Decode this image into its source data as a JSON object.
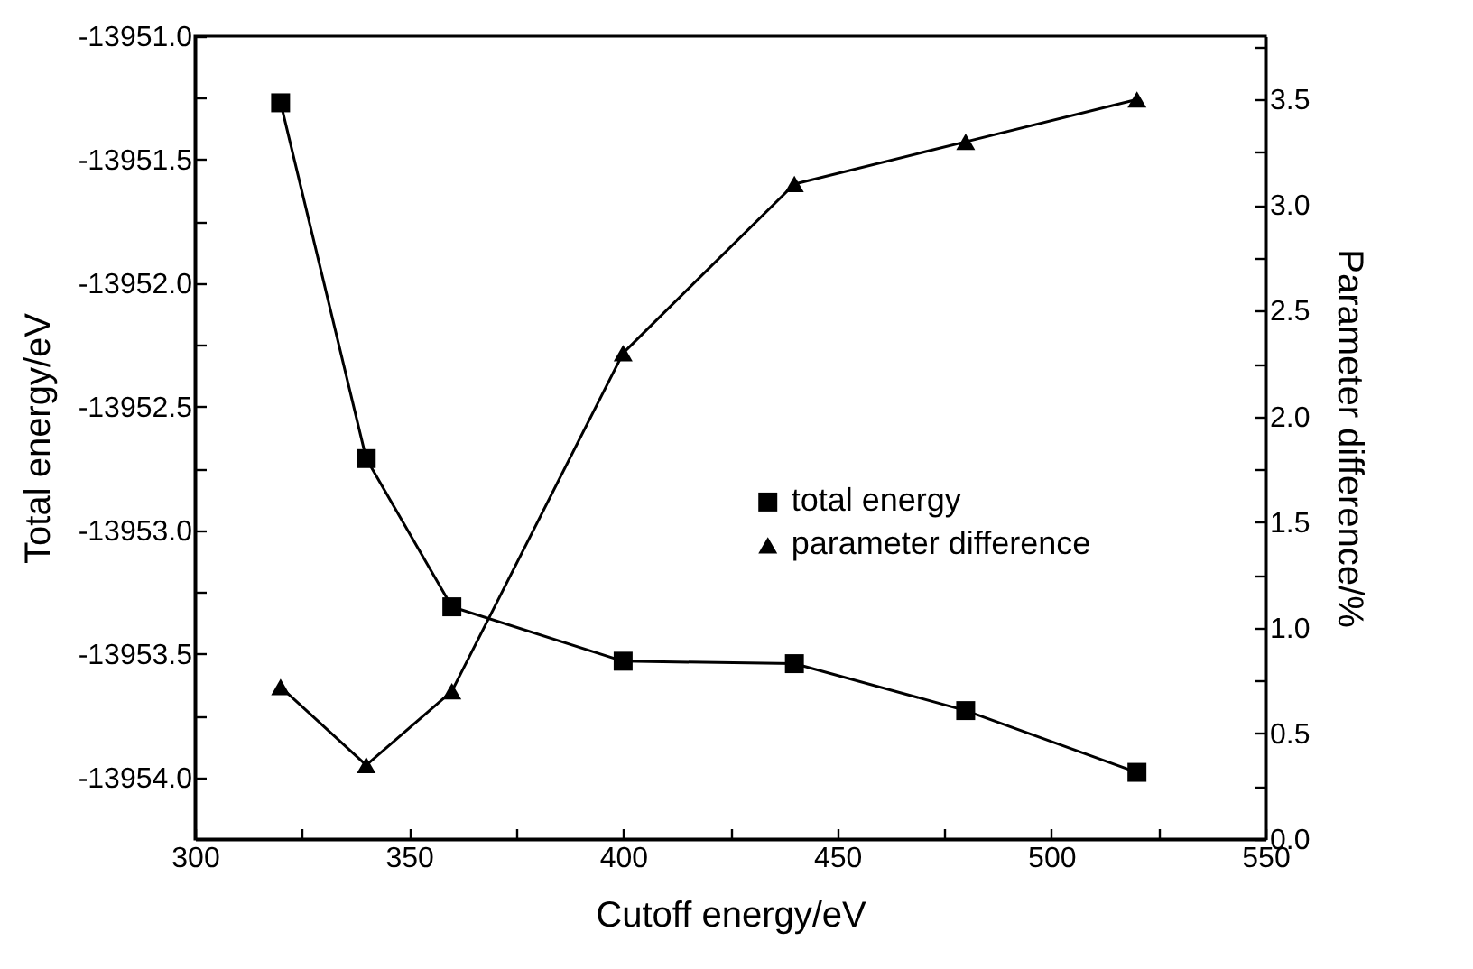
{
  "chart_data": {
    "type": "line",
    "xlabel": "Cutoff energy/eV",
    "ylabel": "Total energy/eV",
    "y2label": "Parameter difference/%",
    "x": [
      320,
      340,
      360,
      400,
      440,
      480,
      520
    ],
    "series": [
      {
        "name": "total energy",
        "color": "#000000",
        "marker": "square",
        "values": [
          -13951.27,
          -13952.71,
          -13953.31,
          -13953.53,
          -13953.54,
          -13953.73,
          -13953.98
        ]
      },
      {
        "name": "parameter difference",
        "color": "#000000",
        "marker": "triangle",
        "axis": "y2",
        "values": [
          0.72,
          0.35,
          0.7,
          2.3,
          3.1,
          3.3,
          3.5
        ]
      }
    ],
    "xlim": [
      300,
      550
    ],
    "xticks": [
      300,
      {
        "value": 325,
        "label": null
      },
      350,
      {
        "value": 375,
        "label": null
      },
      400,
      {
        "value": 425,
        "label": null
      },
      450,
      {
        "value": 475,
        "label": null
      },
      500,
      {
        "value": 525,
        "label": null
      },
      550
    ],
    "ylim": [
      -13954.25,
      -13951.0
    ],
    "yticks": [
      {
        "value": -13954,
        "label": "-13954.0"
      },
      {
        "value": -13953.75,
        "label": null
      },
      {
        "value": -13953.5,
        "label": "-13953.5"
      },
      {
        "value": -13953.25,
        "label": null
      },
      {
        "value": -13953,
        "label": "-13953.0"
      },
      {
        "value": -13952.75,
        "label": null
      },
      {
        "value": -13952.5,
        "label": "-13952.5"
      },
      {
        "value": -13952.25,
        "label": null
      },
      {
        "value": -13952,
        "label": "-13952.0"
      },
      {
        "value": -13951.75,
        "label": null
      },
      {
        "value": -13951.5,
        "label": "-13951.5"
      },
      {
        "value": -13951.25,
        "label": null
      },
      {
        "value": -13951,
        "label": "-13951.0"
      }
    ],
    "y2lim": [
      0,
      3.8
    ],
    "y2ticks": [
      {
        "value": 0,
        "label": "0.0"
      },
      {
        "value": 0.25,
        "label": null
      },
      0.5,
      {
        "value": 0.75,
        "label": null
      },
      {
        "value": 1,
        "label": "1.0"
      },
      {
        "value": 1.25,
        "label": null
      },
      1.5,
      {
        "value": 1.75,
        "label": null
      },
      {
        "value": 2,
        "label": "2.0"
      },
      {
        "value": 2.25,
        "label": null
      },
      2.5,
      {
        "value": 2.75,
        "label": null
      },
      {
        "value": 3,
        "label": "3.0"
      },
      {
        "value": 3.25,
        "label": null
      },
      3.5,
      {
        "value": 3.75,
        "label": null
      }
    ],
    "grid": false,
    "legend": "right",
    "line_style": "solid"
  }
}
